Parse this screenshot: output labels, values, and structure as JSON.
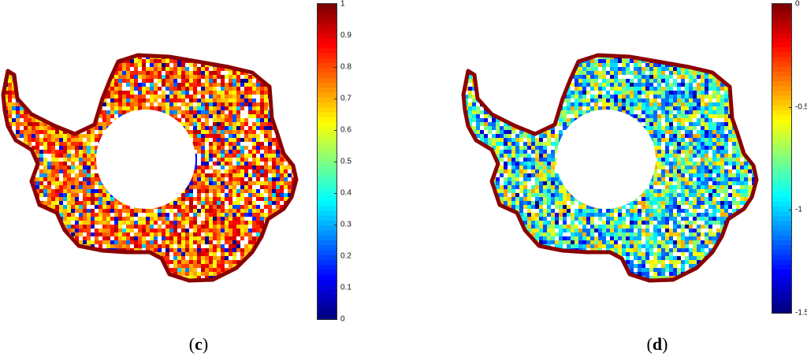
{
  "panels": [
    {
      "id": "c",
      "caption_open": "(",
      "caption_letter": "c",
      "caption_close": ")",
      "colorbar_ticks": [
        "1",
        "0.9",
        "0.8",
        "0.7",
        "0.6",
        "0.5",
        "0.4",
        "0.3",
        "0.2",
        "0.1",
        "0"
      ],
      "colorbar_min": 0,
      "colorbar_max": 1,
      "base_level": 0.78
    },
    {
      "id": "d",
      "caption_open": "(",
      "caption_letter": "d",
      "caption_close": ")",
      "colorbar_ticks": [
        "0",
        "-0.5",
        "-1",
        "-1.5"
      ],
      "colorbar_min": -1.5,
      "colorbar_max": 0,
      "base_level": 0.45
    }
  ],
  "colors": {
    "outline": "#8b0000",
    "colormap": "jet",
    "background": "#ffffff"
  }
}
